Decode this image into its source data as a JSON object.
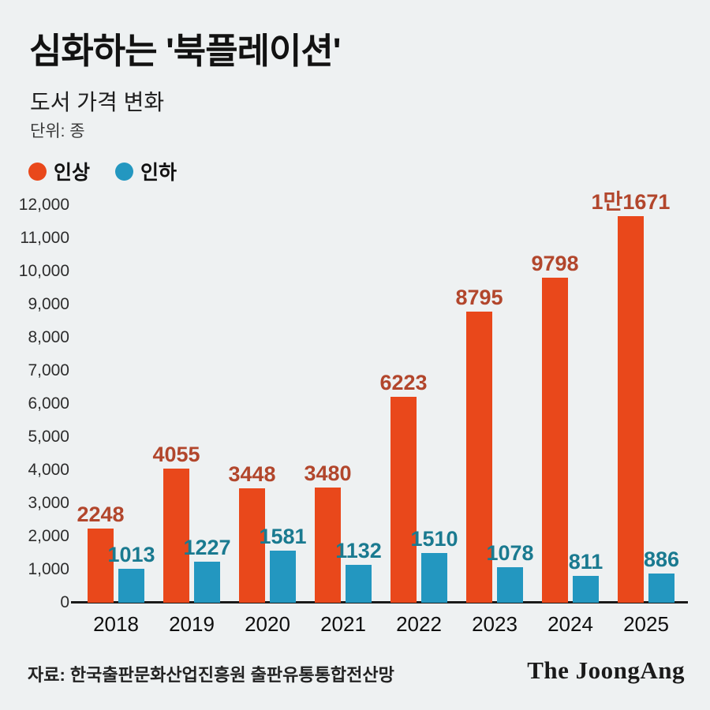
{
  "page": {
    "background_color": "#eef1f2"
  },
  "header": {
    "title": "심화하는 '북플레이션'",
    "subtitle": "도서 가격 변화",
    "unit": "단위: 종"
  },
  "legend": {
    "items": [
      {
        "label": "인상",
        "color": "#e9481b"
      },
      {
        "label": "인하",
        "color": "#2397c0"
      }
    ]
  },
  "chart_data": {
    "type": "bar",
    "title": "도서 가격 변화",
    "unit": "종",
    "categories": [
      "2018",
      "2019",
      "2020",
      "2021",
      "2022",
      "2023",
      "2024",
      "2025"
    ],
    "series": [
      {
        "name": "인상",
        "color": "#e9481b",
        "label_color": "#b2462c",
        "values": [
          2248,
          4055,
          3448,
          3480,
          6223,
          8795,
          9798,
          11671
        ],
        "labels": [
          "2248",
          "4055",
          "3448",
          "3480",
          "6223",
          "8795",
          "9798",
          "1만1671"
        ]
      },
      {
        "name": "인하",
        "color": "#2397c0",
        "label_color": "#1a7a90",
        "values": [
          1013,
          1227,
          1581,
          1132,
          1510,
          1078,
          811,
          886
        ],
        "labels": [
          "1013",
          "1227",
          "1581",
          "1132",
          "1510",
          "1078",
          "811",
          "886"
        ]
      }
    ],
    "ylim": [
      0,
      12000
    ],
    "ytick_step": 1000,
    "yticks": [
      "12,000",
      "11,000",
      "10,000",
      "9,000",
      "8,000",
      "7,000",
      "6,000",
      "5,000",
      "4,000",
      "3,000",
      "2,000",
      "1,000",
      "0"
    ],
    "grid": false,
    "legend_position": "top-left"
  },
  "footer": {
    "source": "자료: 한국출판문화산업진흥원 출판유통통합전산망",
    "brand": "The JoongAng"
  }
}
